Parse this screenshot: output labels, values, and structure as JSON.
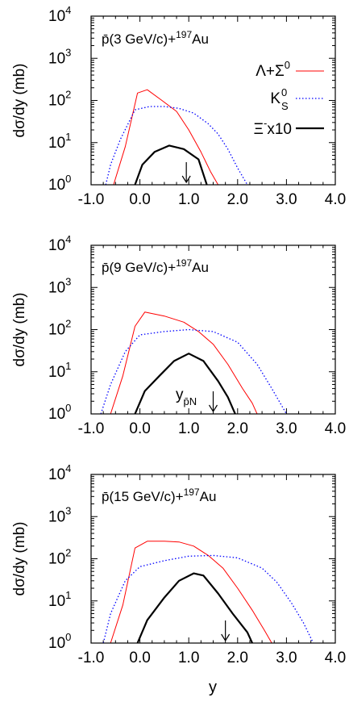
{
  "x_axis_label": "y",
  "y_axis_label": "dσ/dy (mb)",
  "colors": {
    "lambda": "#ff0000",
    "k0s": "#0000ff",
    "xi": "#000000"
  },
  "legend": {
    "lambda_label": "Λ+Σ",
    "lambda_sup": "0",
    "k0s_label": "K",
    "k0s_sup": "0",
    "k0s_sub": "S",
    "xi_label": "Ξ",
    "xi_sup": "-",
    "xi_suffix": "x10"
  },
  "x_ticks": [
    "-1.0",
    "0.0",
    "1.0",
    "2.0",
    "3.0",
    "4.0"
  ],
  "y_ticks": [
    {
      "base": "10",
      "exp": "0"
    },
    {
      "base": "10",
      "exp": "1"
    },
    {
      "base": "10",
      "exp": "2"
    },
    {
      "base": "10",
      "exp": "3"
    },
    {
      "base": "10",
      "exp": "4"
    }
  ],
  "panels": [
    {
      "title_pre": "p̄(3 GeV/c)+",
      "title_sup": "197",
      "title_post": "Au",
      "ypn_label": null,
      "ypn_sub": null
    },
    {
      "title_pre": "p̄(9 GeV/c)+",
      "title_sup": "197",
      "title_post": "Au",
      "ypn_label": "y",
      "ypn_sub": "p̄N"
    },
    {
      "title_pre": "p̄(15 GeV/c)+",
      "title_sup": "197",
      "title_post": "Au",
      "ypn_label": null,
      "ypn_sub": null
    }
  ],
  "chart_data": [
    {
      "type": "line",
      "title": "p̄(3 GeV/c)+197Au",
      "xlabel": "y",
      "ylabel": "dσ/dy (mb)",
      "xlim": [
        -1.0,
        4.0
      ],
      "ylim": [
        1,
        10000
      ],
      "y_scale": "log",
      "legend_position": "right",
      "arrow_x": 0.95,
      "series": [
        {
          "name": "Λ+Σ0",
          "color": "#ff0000",
          "style": "solid",
          "x": [
            -0.54,
            -0.3,
            -0.05,
            0.15,
            0.45,
            0.75,
            1.0,
            1.25,
            1.45,
            1.6
          ],
          "y": [
            1.0,
            8.0,
            150,
            180,
            100,
            55,
            20,
            6,
            2,
            1.0
          ]
        },
        {
          "name": "K0S",
          "color": "#0000ff",
          "style": "dotted",
          "x": [
            -0.7,
            -0.6,
            -0.4,
            -0.1,
            0.2,
            0.5,
            0.8,
            1.1,
            1.4,
            1.6,
            1.8,
            2.0,
            2.2
          ],
          "y": [
            1.0,
            3,
            12,
            60,
            72,
            72,
            65,
            50,
            28,
            16,
            7,
            2.5,
            1.0
          ]
        },
        {
          "name": "Ξ-x10",
          "color": "#000000",
          "style": "solid",
          "x": [
            -0.1,
            0.05,
            0.3,
            0.6,
            0.9,
            1.2,
            1.37
          ],
          "y": [
            1.0,
            3,
            6,
            8.5,
            7,
            4,
            1.0
          ]
        }
      ]
    },
    {
      "type": "line",
      "title": "p̄(9 GeV/c)+197Au",
      "xlabel": "y",
      "ylabel": "dσ/dy (mb)",
      "xlim": [
        -1.0,
        4.0
      ],
      "ylim": [
        1,
        10000
      ],
      "y_scale": "log",
      "arrow_x": 1.5,
      "series": [
        {
          "name": "Λ+Σ0",
          "color": "#ff0000",
          "style": "solid",
          "x": [
            -0.6,
            -0.35,
            -0.1,
            0.1,
            0.5,
            0.9,
            1.2,
            1.5,
            1.8,
            2.1,
            2.3,
            2.4
          ],
          "y": [
            1.0,
            8,
            120,
            260,
            210,
            150,
            90,
            45,
            15,
            4,
            1.8,
            1.0
          ]
        },
        {
          "name": "K0S",
          "color": "#0000ff",
          "style": "dotted",
          "x": [
            -0.8,
            -0.6,
            -0.3,
            0.0,
            0.5,
            1.0,
            1.5,
            2.0,
            2.4,
            2.7,
            3.0
          ],
          "y": [
            1.0,
            5,
            30,
            75,
            90,
            100,
            90,
            50,
            15,
            4,
            1.0
          ]
        },
        {
          "name": "Ξ-x10",
          "color": "#000000",
          "style": "solid",
          "x": [
            -0.1,
            0.1,
            0.4,
            0.7,
            1.0,
            1.3,
            1.6,
            1.8,
            1.95
          ],
          "y": [
            1.0,
            3.5,
            8,
            18,
            27,
            18,
            6,
            2.5,
            1.0
          ]
        }
      ]
    },
    {
      "type": "line",
      "title": "p̄(15 GeV/c)+197Au",
      "xlabel": "y",
      "ylabel": "dσ/dy (mb)",
      "xlim": [
        -1.0,
        4.0
      ],
      "ylim": [
        1,
        10000
      ],
      "y_scale": "log",
      "arrow_x": 1.75,
      "series": [
        {
          "name": "Λ+Σ0",
          "color": "#ff0000",
          "style": "solid",
          "x": [
            -0.6,
            -0.35,
            -0.1,
            0.15,
            0.5,
            0.8,
            1.1,
            1.4,
            1.7,
            2.0,
            2.3,
            2.55,
            2.7
          ],
          "y": [
            1.0,
            8,
            180,
            260,
            260,
            250,
            200,
            120,
            60,
            20,
            6,
            2,
            1.0
          ]
        },
        {
          "name": "K0S",
          "color": "#0000ff",
          "style": "dotted",
          "x": [
            -0.75,
            -0.6,
            -0.3,
            0.0,
            0.5,
            1.0,
            1.5,
            2.0,
            2.5,
            2.8,
            3.1,
            3.35,
            3.55
          ],
          "y": [
            1.0,
            5,
            30,
            65,
            90,
            115,
            120,
            105,
            60,
            28,
            9,
            3,
            1.0
          ]
        },
        {
          "name": "Ξ-x10",
          "color": "#000000",
          "style": "solid",
          "x": [
            -0.05,
            0.15,
            0.5,
            0.8,
            1.1,
            1.3,
            1.6,
            1.9,
            2.2,
            2.3
          ],
          "y": [
            1.0,
            3.5,
            12,
            30,
            45,
            40,
            15,
            5,
            1.8,
            1.0
          ]
        }
      ]
    }
  ]
}
